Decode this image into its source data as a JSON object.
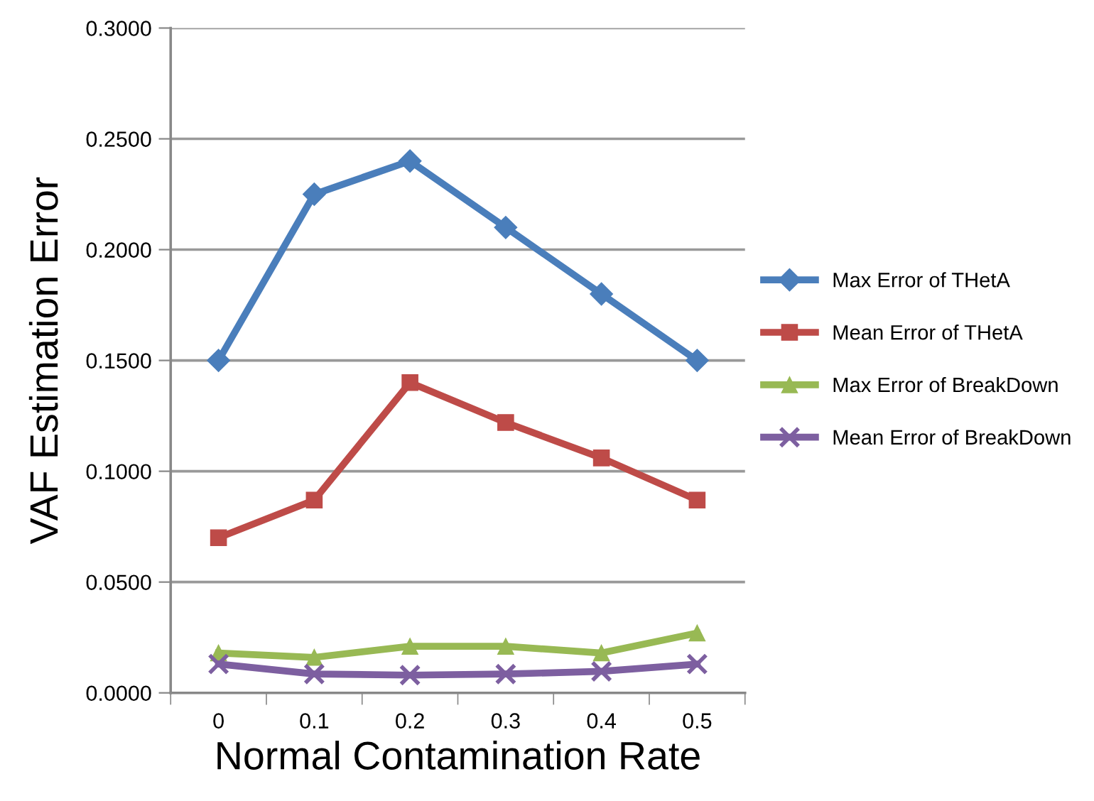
{
  "chart_data": {
    "type": "line",
    "xlabel": "Normal Contamination Rate",
    "ylabel": "VAF Estimation Error",
    "categories": [
      "0",
      "0.1",
      "0.2",
      "0.3",
      "0.4",
      "0.5"
    ],
    "series": [
      {
        "name": "Max Error of THetA",
        "color": "#4a7ebb",
        "marker": "diamond",
        "values": [
          0.15,
          0.225,
          0.24,
          0.21,
          0.18,
          0.15
        ]
      },
      {
        "name": "Mean Error of THetA",
        "color": "#be4b48",
        "marker": "square",
        "values": [
          0.07,
          0.087,
          0.14,
          0.122,
          0.106,
          0.087
        ]
      },
      {
        "name": "Max Error of BreakDown",
        "color": "#98b954",
        "marker": "triangle",
        "values": [
          0.018,
          0.016,
          0.021,
          0.021,
          0.018,
          0.027
        ]
      },
      {
        "name": "Mean Error of BreakDown",
        "color": "#7d5fa0",
        "marker": "cross",
        "values": [
          0.013,
          0.0085,
          0.008,
          0.0085,
          0.0097,
          0.013
        ]
      }
    ],
    "ylim": [
      0,
      0.3
    ],
    "yticks": [
      {
        "value": 0,
        "label": "0.0000"
      },
      {
        "value": 0.05,
        "label": "0.0500"
      },
      {
        "value": 0.1,
        "label": "0.1000"
      },
      {
        "value": 0.15,
        "label": "0.1500"
      },
      {
        "value": 0.2,
        "label": "0.2000"
      },
      {
        "value": 0.25,
        "label": "0.2500"
      },
      {
        "value": 0.3,
        "label": "0.3000"
      }
    ],
    "grid": "y",
    "legend": "right",
    "line_style": "solid"
  }
}
